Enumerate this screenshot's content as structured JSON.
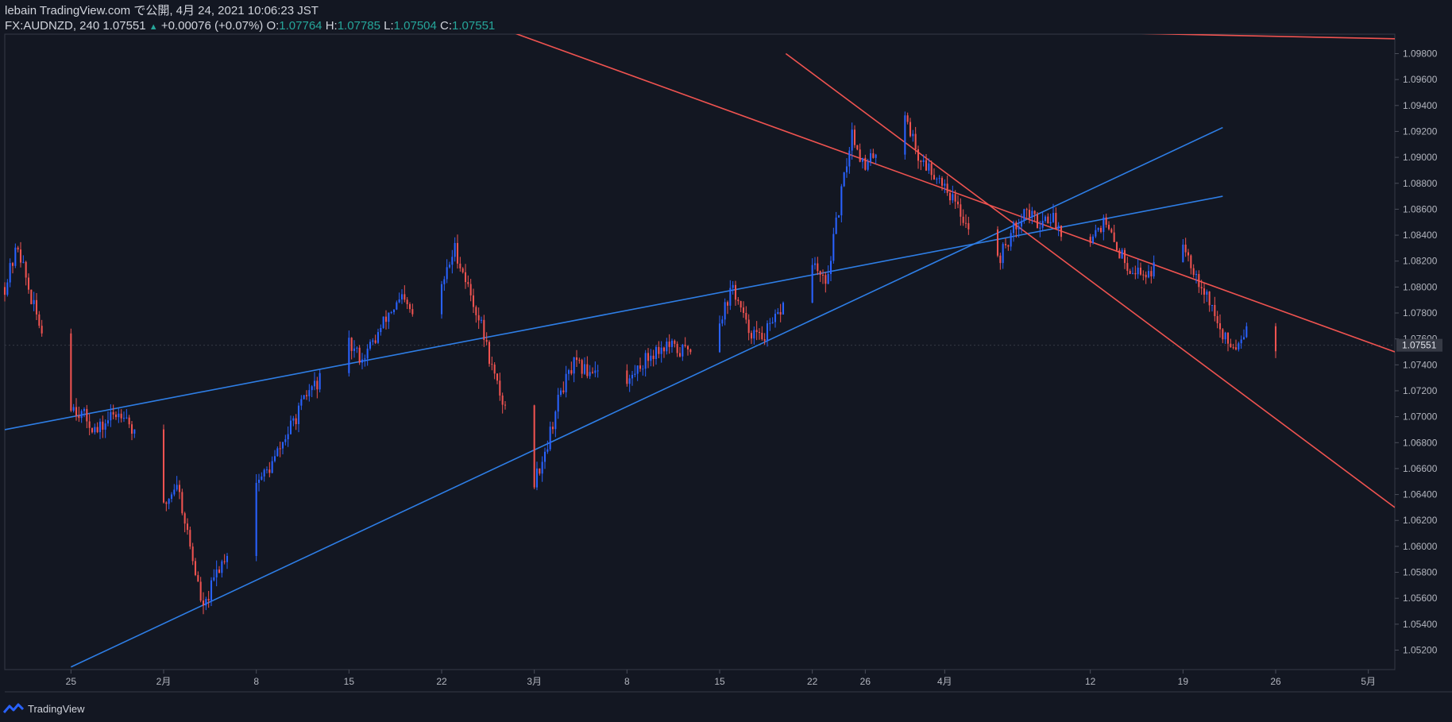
{
  "header": {
    "line1": "lebain TradingView.com で公開, 4月 24, 2021 10:06:23 JST",
    "symbol": "FX:AUDNZD, 240",
    "last": "1.07551",
    "change": "+0.00076 (+0.07%)",
    "o_label": "O:",
    "o_value": "1.07764",
    "h_label": "H:",
    "h_value": "1.07785",
    "l_label": "L:",
    "l_value": "1.07504",
    "c_label": "C:",
    "c_value": "1.07551"
  },
  "footer": {
    "brand": "TradingView"
  },
  "colors": {
    "background": "#131722",
    "up": "#2962ff",
    "down": "#ef5350",
    "channel_up": "#2e7ee6",
    "channel_down": "#ef5350",
    "grid_text": "#b2b5be"
  },
  "chart_data": {
    "type": "candlestick",
    "symbol": "FX:AUDNZD",
    "interval": "240",
    "ylim": [
      1.0505,
      1.0995
    ],
    "y_ticks": [
      "1.09800",
      "1.09600",
      "1.09400",
      "1.09200",
      "1.09000",
      "1.08800",
      "1.08600",
      "1.08400",
      "1.08200",
      "1.08000",
      "1.07800",
      "1.07600",
      "1.07400",
      "1.07200",
      "1.07000",
      "1.06800",
      "1.06600",
      "1.06400",
      "1.06200",
      "1.06000",
      "1.05800",
      "1.05600",
      "1.05400",
      "1.05200"
    ],
    "x_ticks": [
      {
        "label": "25",
        "date": "2021-01-25"
      },
      {
        "label": "2月",
        "date": "2021-02-01"
      },
      {
        "label": "8",
        "date": "2021-02-08"
      },
      {
        "label": "15",
        "date": "2021-02-15"
      },
      {
        "label": "22",
        "date": "2021-02-22"
      },
      {
        "label": "3月",
        "date": "2021-03-01"
      },
      {
        "label": "8",
        "date": "2021-03-08"
      },
      {
        "label": "15",
        "date": "2021-03-15"
      },
      {
        "label": "22",
        "date": "2021-03-22"
      },
      {
        "label": "26",
        "date": "2021-03-26"
      },
      {
        "label": "4月",
        "date": "2021-04-01"
      },
      {
        "label": "12",
        "date": "2021-04-12"
      },
      {
        "label": "19",
        "date": "2021-04-19"
      },
      {
        "label": "26",
        "date": "2021-04-26"
      },
      {
        "label": "5月",
        "date": "2021-05-03"
      }
    ],
    "current_price": "1.07551",
    "close_path": [
      [
        "2021-01-20",
        1.08
      ],
      [
        "2021-01-21",
        1.0832
      ],
      [
        "2021-01-22",
        1.079
      ],
      [
        "2021-01-23",
        1.076
      ],
      [
        "2021-01-24",
        1.073
      ],
      [
        "2021-01-25",
        1.071
      ],
      [
        "2021-01-26",
        1.07
      ],
      [
        "2021-01-27",
        1.0688
      ],
      [
        "2021-01-28",
        1.07
      ],
      [
        "2021-01-29",
        1.0705
      ],
      [
        "2021-01-30",
        1.068
      ],
      [
        "2021-01-31",
        1.064
      ],
      [
        "2021-02-01",
        1.063
      ],
      [
        "2021-02-02",
        1.065
      ],
      [
        "2021-02-03",
        1.06
      ],
      [
        "2021-02-04",
        1.055
      ],
      [
        "2021-02-05",
        1.058
      ],
      [
        "2021-02-06",
        1.06
      ],
      [
        "2021-02-07",
        1.063
      ],
      [
        "2021-02-08",
        1.065
      ],
      [
        "2021-02-09",
        1.066
      ],
      [
        "2021-02-10",
        1.068
      ],
      [
        "2021-02-11",
        1.07
      ],
      [
        "2021-02-12",
        1.072
      ],
      [
        "2021-02-13",
        1.073
      ],
      [
        "2021-02-14",
        1.074
      ],
      [
        "2021-02-15",
        1.0755
      ],
      [
        "2021-02-16",
        1.0745
      ],
      [
        "2021-02-17",
        1.076
      ],
      [
        "2021-02-18",
        1.078
      ],
      [
        "2021-02-19",
        1.079
      ],
      [
        "2021-02-20",
        1.0775
      ],
      [
        "2021-02-21",
        1.079
      ],
      [
        "2021-02-22",
        1.08
      ],
      [
        "2021-02-23",
        1.083
      ],
      [
        "2021-02-24",
        1.08
      ],
      [
        "2021-02-25",
        1.077
      ],
      [
        "2021-02-26",
        1.073
      ],
      [
        "2021-02-27",
        1.07
      ],
      [
        "2021-02-28",
        1.066
      ],
      [
        "2021-03-01",
        1.065
      ],
      [
        "2021-03-02",
        1.068
      ],
      [
        "2021-03-03",
        1.072
      ],
      [
        "2021-03-04",
        1.074
      ],
      [
        "2021-03-05",
        1.0735
      ],
      [
        "2021-03-06",
        1.074
      ],
      [
        "2021-03-07",
        1.0745
      ],
      [
        "2021-03-08",
        1.0725
      ],
      [
        "2021-03-09",
        1.074
      ],
      [
        "2021-03-10",
        1.075
      ],
      [
        "2021-03-11",
        1.0755
      ],
      [
        "2021-03-12",
        1.075
      ],
      [
        "2021-03-13",
        1.0755
      ],
      [
        "2021-03-14",
        1.076
      ],
      [
        "2021-03-15",
        1.0775
      ],
      [
        "2021-03-16",
        1.08
      ],
      [
        "2021-03-17",
        1.077
      ],
      [
        "2021-03-18",
        1.076
      ],
      [
        "2021-03-19",
        1.077
      ],
      [
        "2021-03-20",
        1.079
      ],
      [
        "2021-03-21",
        1.081
      ],
      [
        "2021-03-22",
        1.082
      ],
      [
        "2021-03-23",
        1.08
      ],
      [
        "2021-03-24",
        1.086
      ],
      [
        "2021-03-25",
        1.092
      ],
      [
        "2021-03-26",
        1.089
      ],
      [
        "2021-03-27",
        1.091
      ],
      [
        "2021-03-28",
        1.092
      ],
      [
        "2021-03-29",
        1.0935
      ],
      [
        "2021-03-30",
        1.09
      ],
      [
        "2021-03-31",
        1.089
      ],
      [
        "2021-04-01",
        1.088
      ],
      [
        "2021-04-02",
        1.086
      ],
      [
        "2021-04-03",
        1.0845
      ],
      [
        "2021-04-04",
        1.083
      ],
      [
        "2021-04-05",
        1.082
      ],
      [
        "2021-04-06",
        1.084
      ],
      [
        "2021-04-07",
        1.086
      ],
      [
        "2021-04-08",
        1.085
      ],
      [
        "2021-04-09",
        1.0855
      ],
      [
        "2021-04-10",
        1.084
      ],
      [
        "2021-04-11",
        1.0835
      ],
      [
        "2021-04-12",
        1.084
      ],
      [
        "2021-04-13",
        1.085
      ],
      [
        "2021-04-14",
        1.083
      ],
      [
        "2021-04-15",
        1.0815
      ],
      [
        "2021-04-16",
        1.081
      ],
      [
        "2021-04-17",
        1.0815
      ],
      [
        "2021-04-18",
        1.083
      ],
      [
        "2021-04-19",
        1.0835
      ],
      [
        "2021-04-20",
        1.081
      ],
      [
        "2021-04-21",
        1.079
      ],
      [
        "2021-04-22",
        1.076
      ],
      [
        "2021-04-23",
        1.0755
      ],
      [
        "2021-04-24",
        1.0775
      ],
      [
        "2021-04-25",
        1.077
      ],
      [
        "2021-04-26",
        1.0755
      ]
    ],
    "trendlines": [
      {
        "color": "blue",
        "from": [
          "2021-01-20",
          1.069
        ],
        "to": [
          "2021-04-22",
          1.087
        ]
      },
      {
        "color": "blue",
        "from": [
          "2021-01-25",
          1.0507
        ],
        "to": [
          "2021-04-22",
          1.0923
        ]
      },
      {
        "color": "red",
        "from": [
          "2021-02-25",
          1.1005
        ],
        "to": [
          "2021-05-05",
          1.075
        ]
      },
      {
        "color": "red",
        "from": [
          "2021-03-20",
          1.098
        ],
        "to": [
          "2021-05-05",
          1.063
        ]
      },
      {
        "color": "red",
        "from": [
          "2021-04-04",
          1.0998
        ],
        "to": [
          "2021-05-07",
          1.0991
        ]
      }
    ]
  }
}
